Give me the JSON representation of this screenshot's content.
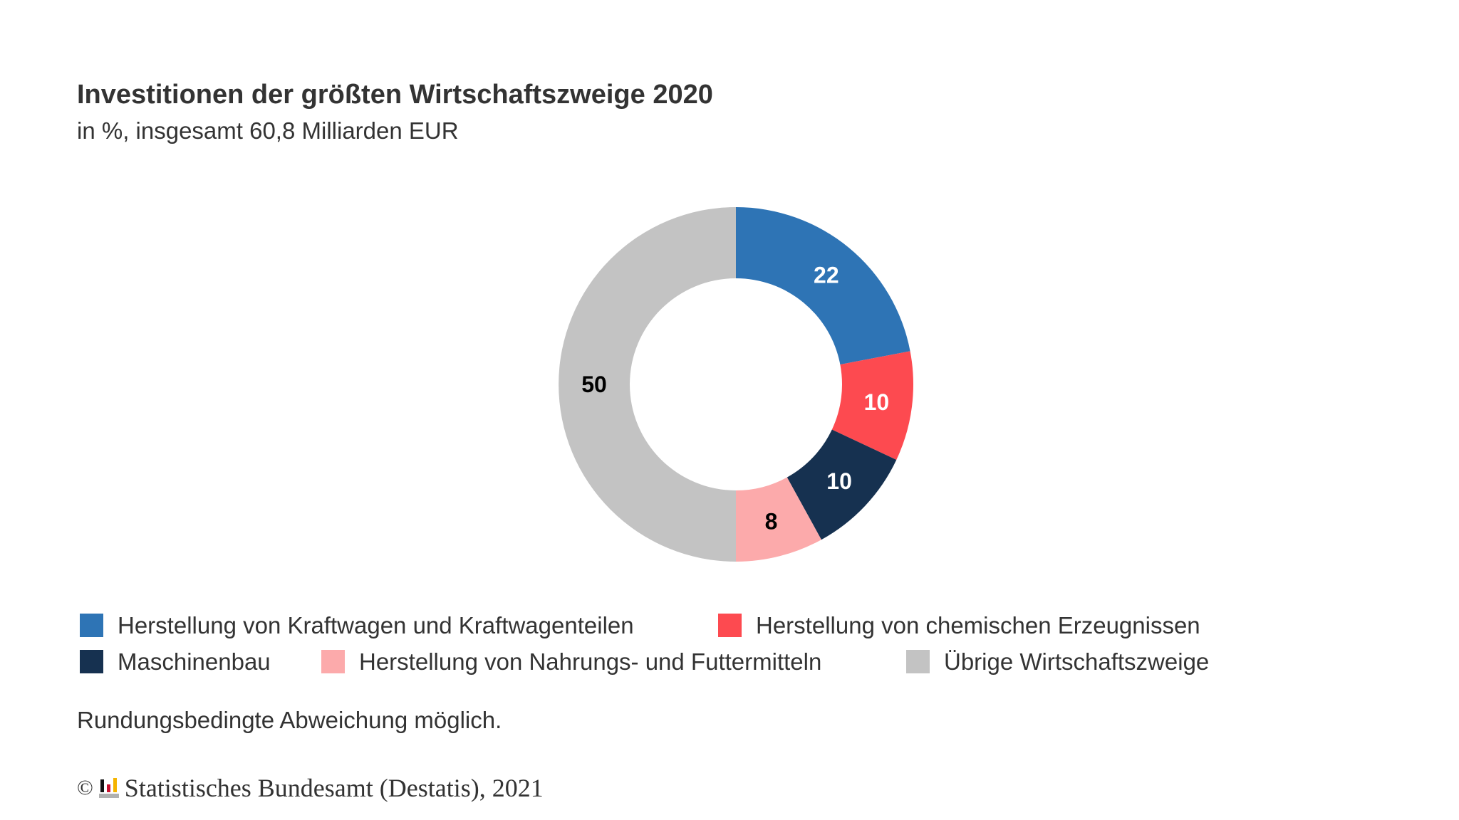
{
  "chart_data": {
    "type": "pie",
    "donut": true,
    "title": "Investitionen der größten Wirtschaftszweige 2020",
    "subtitle": "in %, insgesamt 60,8 Milliarden EUR",
    "categories": [
      "Herstellung von Kraftwagen und Kraftwagenteilen",
      "Herstellung von chemischen Erzeugnissen",
      "Maschinenbau",
      "Herstellung von Nahrungs- und Futtermitteln",
      "Übrige Wirtschaftszweige"
    ],
    "values": [
      22,
      10,
      10,
      8,
      50
    ],
    "labels": [
      "22",
      "10",
      "10",
      "8",
      "50"
    ],
    "colors": [
      "#2e74b5",
      "#fd4a50",
      "#163150",
      "#fcaaab",
      "#c3c3c3"
    ],
    "label_colors": [
      "#ffffff",
      "#ffffff",
      "#ffffff",
      "#000000",
      "#000000"
    ],
    "legend_position": "bottom",
    "note": "Rundungsbedingte Abweichung möglich."
  },
  "footer": {
    "copyright": "©",
    "source": "Statistisches Bundesamt (Destatis), 2021"
  }
}
